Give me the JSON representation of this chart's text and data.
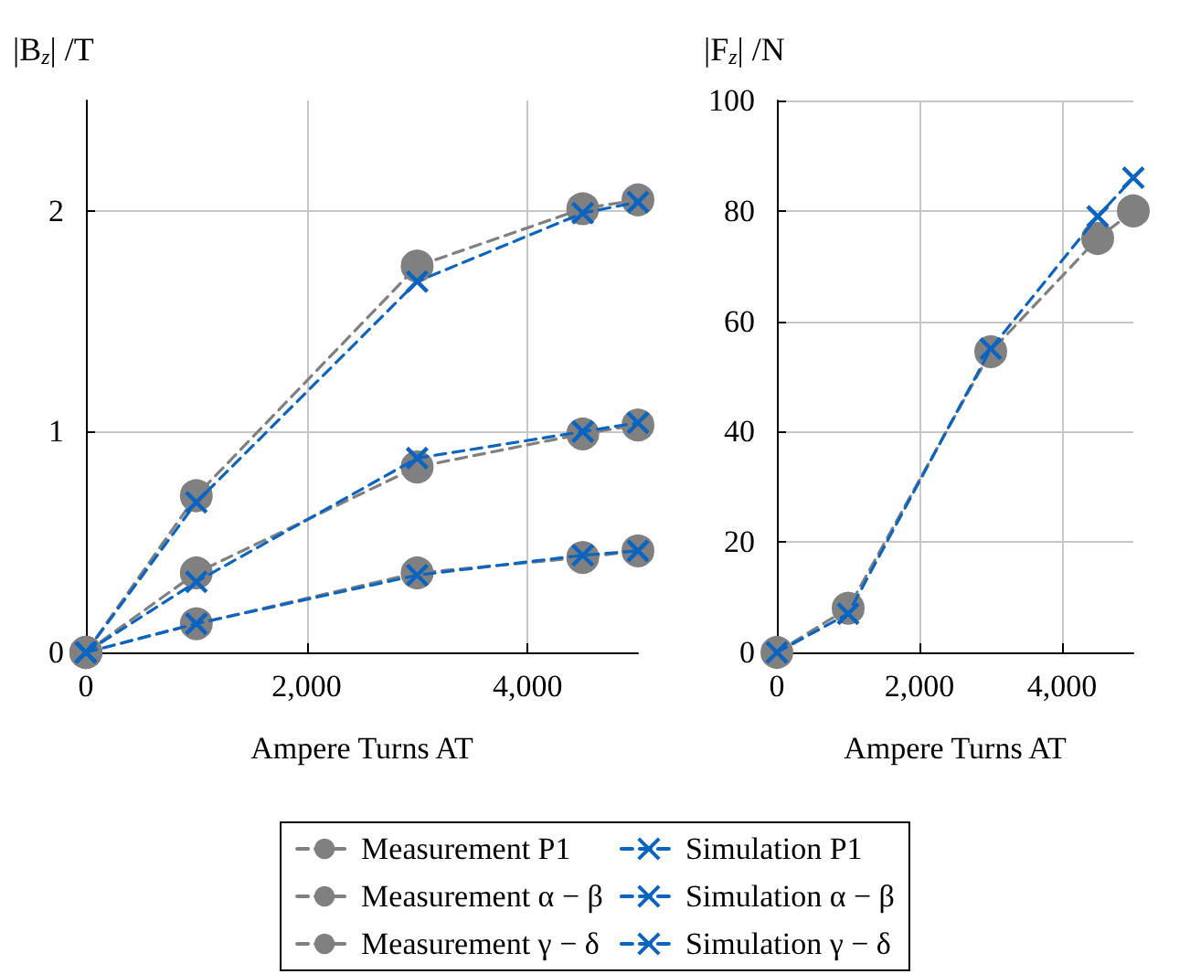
{
  "chart_data": [
    {
      "type": "line",
      "ylabel": "|B$_{z}$| /T",
      "xlabel": "Ampere Turns AT",
      "xlim": [
        0,
        5000
      ],
      "xticks": [
        {
          "value": 0,
          "label": "0"
        },
        {
          "value": 2000,
          "label": "2,000"
        },
        {
          "value": 4000,
          "label": "4,000"
        }
      ],
      "ylim": [
        0,
        2.5
      ],
      "yticks": [
        0,
        1,
        2
      ],
      "grid": true,
      "legend": "bottom",
      "line_style": "dashed",
      "x": [
        0,
        1000,
        3000,
        4500,
        5000
      ],
      "series": [
        {
          "name": "Measurement P1",
          "color": "#808080",
          "marker": "circle",
          "values": [
            0,
            0.71,
            1.75,
            2.01,
            2.05
          ]
        },
        {
          "name": "Measurement α − β",
          "color": "#808080",
          "marker": "circle",
          "values": [
            0,
            0.36,
            0.84,
            0.99,
            1.03
          ]
        },
        {
          "name": "Measurement γ − δ",
          "color": "#808080",
          "marker": "circle",
          "values": [
            0,
            0.13,
            0.36,
            0.43,
            0.46
          ]
        },
        {
          "name": "Simulation P1",
          "color": "#0b64c0",
          "marker": "cross",
          "values": [
            0,
            0.68,
            1.68,
            1.99,
            2.04
          ]
        },
        {
          "name": "Simulation α − β",
          "color": "#0b64c0",
          "marker": "cross",
          "values": [
            0,
            0.32,
            0.88,
            1.0,
            1.04
          ]
        },
        {
          "name": "Simulation γ − δ",
          "color": "#0b64c0",
          "marker": "cross",
          "values": [
            0,
            0.13,
            0.35,
            0.44,
            0.46
          ]
        }
      ]
    },
    {
      "type": "line",
      "ylabel": "|F$_{z}$| /N",
      "xlabel": "Ampere Turns AT",
      "xlim": [
        0,
        5000
      ],
      "xticks": [
        {
          "value": 0,
          "label": "0"
        },
        {
          "value": 2000,
          "label": "2,000"
        },
        {
          "value": 4000,
          "label": "4,000"
        }
      ],
      "ylim": [
        0,
        100
      ],
      "yticks": [
        0,
        20,
        40,
        60,
        80,
        100
      ],
      "grid": true,
      "line_style": "dashed",
      "x": [
        0,
        1000,
        3000,
        4500,
        5000
      ],
      "series": [
        {
          "color": "#808080",
          "marker": "circle",
          "values": [
            0,
            8,
            54.5,
            75,
            80
          ]
        },
        {
          "color": "#0b64c0",
          "marker": "cross",
          "values": [
            0,
            7,
            55,
            79,
            86
          ]
        }
      ]
    }
  ]
}
